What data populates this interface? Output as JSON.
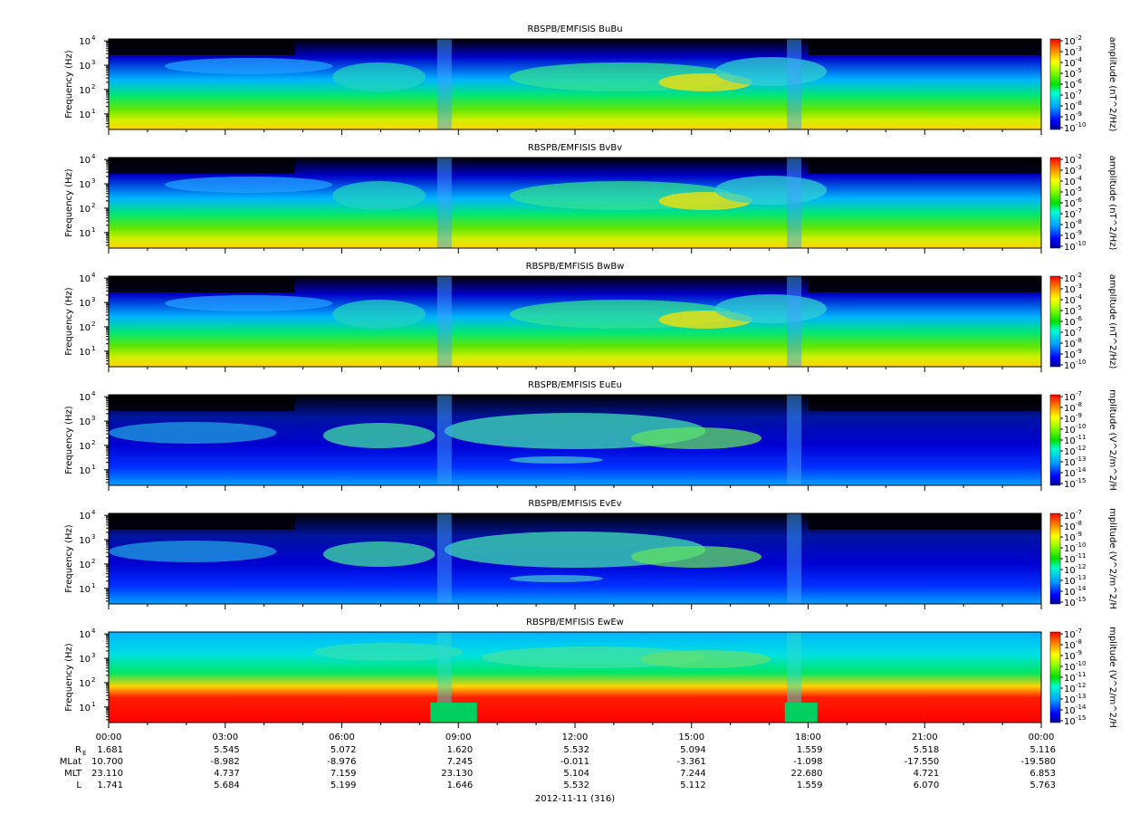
{
  "date_label": "2012-11-11 (316)",
  "x_ticks": [
    "00:00",
    "03:00",
    "06:00",
    "09:00",
    "12:00",
    "15:00",
    "18:00",
    "21:00",
    "00:00"
  ],
  "ephemeris": {
    "rows": [
      {
        "label": "R",
        "sub": "E",
        "values": [
          "1.681",
          "5.545",
          "5.072",
          "1.620",
          "5.532",
          "5.094",
          "1.559",
          "5.518",
          "5.116"
        ]
      },
      {
        "label": "MLat",
        "sub": "",
        "values": [
          "10.700",
          "-8.982",
          "-8.976",
          "7.245",
          "-0.011",
          "-3.361",
          "-1.098",
          "-17.550",
          "-19.580"
        ]
      },
      {
        "label": "MLT",
        "sub": "",
        "values": [
          "23.110",
          "4.737",
          "7.159",
          "23.130",
          "5.104",
          "7.244",
          "22.680",
          "4.721",
          "6.853"
        ]
      },
      {
        "label": "L",
        "sub": "",
        "values": [
          "1.741",
          "5.684",
          "5.199",
          "1.646",
          "5.532",
          "5.112",
          "1.559",
          "6.070",
          "5.763"
        ]
      }
    ]
  },
  "chart_data": [
    {
      "type": "heatmap",
      "title": "RBSPB/EMFISIS  BuBu",
      "ylabel": "Frequency (Hz)",
      "yscale": "log",
      "ylim": [
        2.3,
        12000
      ],
      "y_ticks": [
        "1",
        "2",
        "3",
        "4"
      ],
      "colorbar": {
        "label": "amplitude (nT^2/Hz)",
        "exponents": [
          "-2",
          "-3",
          "-4",
          "-5",
          "-6",
          "-7",
          "-8",
          "-9",
          "-10"
        ]
      }
    },
    {
      "type": "heatmap",
      "title": "RBSPB/EMFISIS  BvBv",
      "ylabel": "Frequency (Hz)",
      "yscale": "log",
      "ylim": [
        2.3,
        12000
      ],
      "y_ticks": [
        "1",
        "2",
        "3",
        "4"
      ],
      "colorbar": {
        "label": "amplitude (nT^2/Hz)",
        "exponents": [
          "-2",
          "-3",
          "-4",
          "-5",
          "-6",
          "-7",
          "-8",
          "-9",
          "-10"
        ]
      }
    },
    {
      "type": "heatmap",
      "title": "RBSPB/EMFISIS  BwBw",
      "ylabel": "Frequency (Hz)",
      "yscale": "log",
      "ylim": [
        2.3,
        12000
      ],
      "y_ticks": [
        "1",
        "2",
        "3",
        "4"
      ],
      "colorbar": {
        "label": "amplitude (nT^2/Hz)",
        "exponents": [
          "-2",
          "-3",
          "-4",
          "-5",
          "-6",
          "-7",
          "-8",
          "-9",
          "-10"
        ]
      }
    },
    {
      "type": "heatmap",
      "title": "RBSPB/EMFISIS  EuEu",
      "ylabel": "Frequency (Hz)",
      "yscale": "log",
      "ylim": [
        2.3,
        12000
      ],
      "y_ticks": [
        "1",
        "2",
        "3",
        "4"
      ],
      "colorbar": {
        "label": "mplitude (V^2/m^2/H",
        "exponents": [
          "-7",
          "-8",
          "-9",
          "-10",
          "-11",
          "-12",
          "-13",
          "-14",
          "-15"
        ]
      }
    },
    {
      "type": "heatmap",
      "title": "RBSPB/EMFISIS  EvEv",
      "ylabel": "Frequency (Hz)",
      "yscale": "log",
      "ylim": [
        2.3,
        12000
      ],
      "y_ticks": [
        "1",
        "2",
        "3",
        "4"
      ],
      "colorbar": {
        "label": "mplitude (V^2/m^2/H",
        "exponents": [
          "-7",
          "-8",
          "-9",
          "-10",
          "-11",
          "-12",
          "-13",
          "-14",
          "-15"
        ]
      }
    },
    {
      "type": "heatmap",
      "title": "RBSPB/EMFISIS  EwEw",
      "ylabel": "Frequency (Hz)",
      "yscale": "log",
      "ylim": [
        2.3,
        12000
      ],
      "y_ticks": [
        "1",
        "2",
        "3",
        "4"
      ],
      "colorbar": {
        "label": "mplitude (V^2/m^2/H",
        "exponents": [
          "-7",
          "-8",
          "-9",
          "-10",
          "-11",
          "-12",
          "-13",
          "-14",
          "-15"
        ]
      }
    }
  ]
}
